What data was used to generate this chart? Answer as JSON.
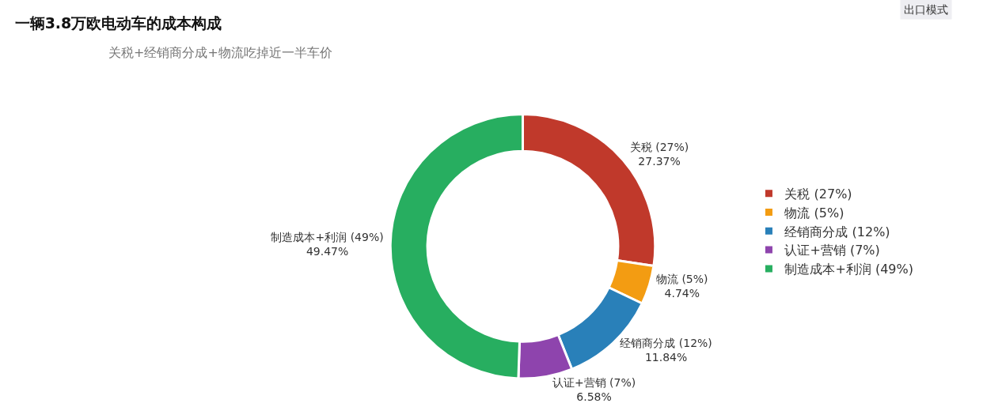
{
  "chart_data": {
    "type": "donut",
    "title": "一辆3.8万欧电动车的成本构成",
    "subtitle": "关税+经销商分成+物流吃掉近一半车价",
    "annotations": [
      "出口模式"
    ],
    "categories": [
      "关税 (27%)",
      "物流 (5%)",
      "经销商分成 (12%)",
      "认证+营销 (7%)",
      "制造成本+利润 (49%)"
    ],
    "values": [
      27.37,
      4.74,
      11.84,
      6.58,
      49.47
    ],
    "value_labels": [
      "27.37%",
      "4.74%",
      "11.84%",
      "6.58%",
      "49.47%"
    ],
    "colors": [
      "#c0392b",
      "#f39c12",
      "#2980b9",
      "#8e44ad",
      "#27ae60"
    ],
    "legend": "right"
  }
}
